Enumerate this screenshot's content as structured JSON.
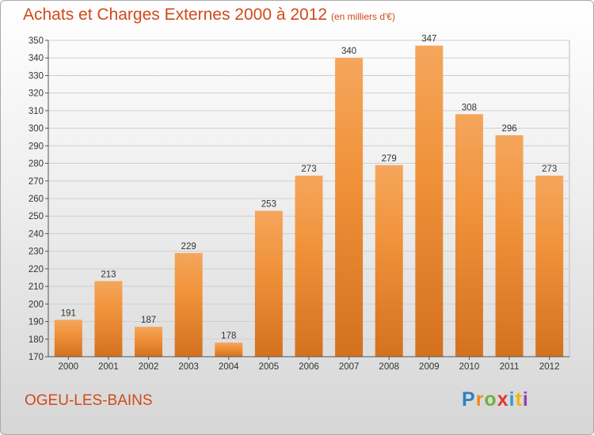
{
  "chart_data": {
    "type": "bar",
    "title": "Achats et Charges Externes 2000 à 2012",
    "subtitle": "(en milliers d'€)",
    "categories": [
      "2000",
      "2001",
      "2002",
      "2003",
      "2004",
      "2005",
      "2006",
      "2007",
      "2008",
      "2009",
      "2010",
      "2011",
      "2012"
    ],
    "values": [
      191,
      213,
      187,
      229,
      178,
      253,
      273,
      340,
      279,
      347,
      308,
      296,
      273
    ],
    "ylim": [
      170,
      350
    ],
    "yticks": [
      170,
      180,
      190,
      200,
      210,
      220,
      230,
      240,
      250,
      260,
      270,
      280,
      290,
      300,
      310,
      320,
      330,
      340,
      350
    ],
    "grid": true,
    "bar_color": "#f0923a",
    "bar_color_light": "#f5a65c",
    "bar_color_dark": "#d4711f"
  },
  "footer": {
    "town": "OGEU-LES-BAINS"
  },
  "logo": {
    "letters": [
      "P",
      "r",
      "o",
      "x",
      "i",
      "t",
      "i"
    ]
  }
}
